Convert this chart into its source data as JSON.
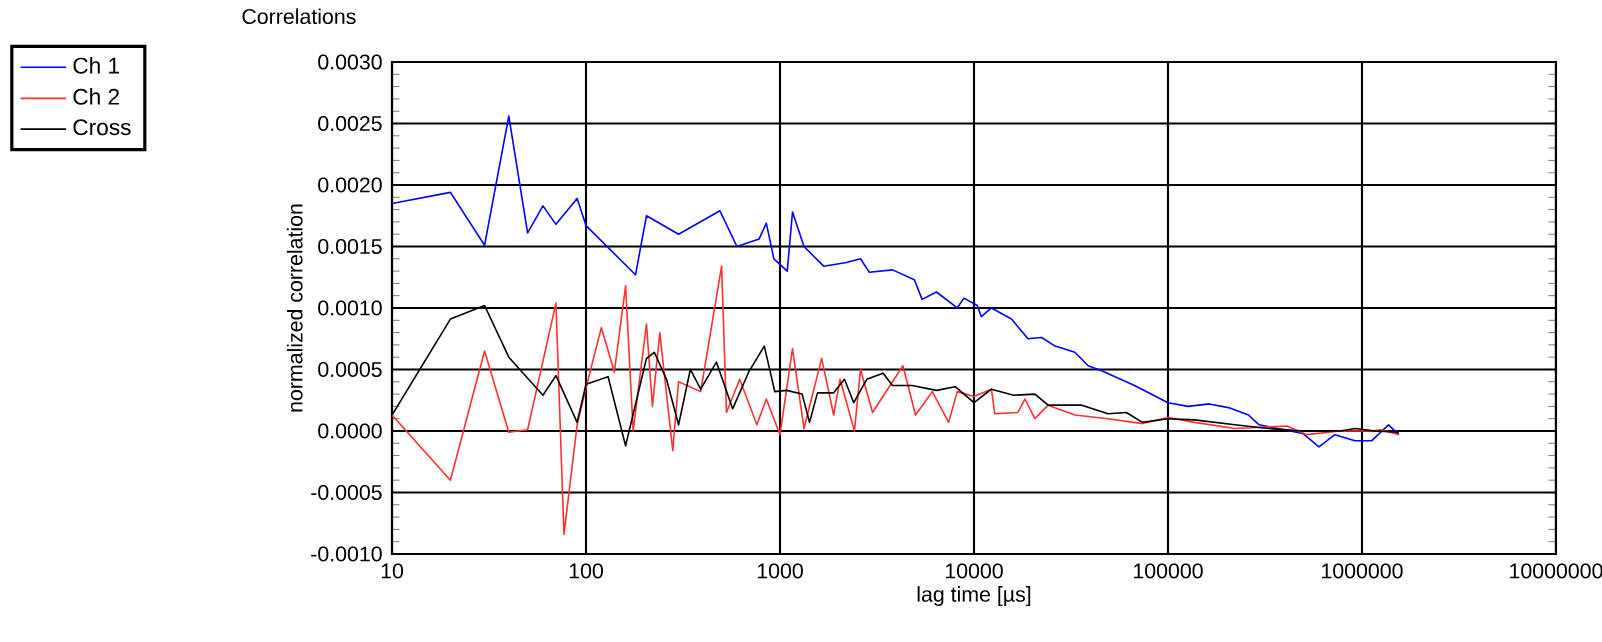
{
  "chart_data": {
    "type": "line",
    "title": "Correlations",
    "xlabel": "lag time [µs]",
    "ylabel": "normalized correlation",
    "log": "x",
    "grid": true,
    "legend": "top left",
    "marker": "none",
    "line_style": "solid",
    "xlim": [
      10,
      10000000
    ],
    "xticks": [
      10,
      100,
      1000,
      10000,
      100000,
      1000000,
      10000000
    ],
    "ylim": [
      -0.001,
      0.003
    ],
    "yticks": [
      {
        "value": -0.001,
        "label": "-0.0010"
      },
      {
        "value": -0.0005,
        "label": "-0.0005"
      },
      {
        "value": 0,
        "label": "0.0000"
      },
      {
        "value": 0.0005,
        "label": "0.0005"
      },
      {
        "value": 0.001,
        "label": "0.0010"
      },
      {
        "value": 0.0015,
        "label": "0.0015"
      },
      {
        "value": 0.002,
        "label": "0.0020"
      },
      {
        "value": 0.0025,
        "label": "0.0025"
      },
      {
        "value": 0.003,
        "label": "0.0030"
      }
    ],
    "series": [
      {
        "name": "Ch 1",
        "color": "#0000ff",
        "x": [
          10,
          20,
          30,
          40,
          50,
          60,
          70,
          90,
          100,
          180,
          205,
          300,
          490,
          600,
          780,
          850,
          930,
          1090,
          1160,
          1330,
          1680,
          2200,
          2600,
          2890,
          3800,
          4930,
          5400,
          6400,
          8200,
          8870,
          10400,
          10900,
          12300,
          15600,
          19000,
          22300,
          26200,
          33100,
          38800,
          45500,
          67300,
          100000,
          127000,
          163000,
          205000,
          260000,
          295000,
          495000,
          600000,
          725000,
          920000,
          1120000,
          1370000,
          1550000
        ],
        "values": [
          0.00185,
          0.00194,
          0.00151,
          0.00256,
          0.00161,
          0.00183,
          0.00168,
          0.00189,
          0.00167,
          0.00127,
          0.00175,
          0.0016,
          0.00179,
          0.0015,
          0.00156,
          0.00169,
          0.0014,
          0.0013,
          0.00178,
          0.0015,
          0.00134,
          0.00137,
          0.0014,
          0.00129,
          0.00131,
          0.00123,
          0.00107,
          0.00113,
          0.001,
          0.00108,
          0.00102,
          0.00093,
          0.001,
          0.00091,
          0.00075,
          0.00076,
          0.00069,
          0.00064,
          0.00053,
          0.00049,
          0.00037,
          0.00023,
          0.0002,
          0.00022,
          0.00019,
          0.00013,
          5e-05,
          -2e-05,
          -0.00013,
          -3e-05,
          -8e-05,
          -8e-05,
          5e-05,
          -3e-05
        ]
      },
      {
        "name": "Ch 2",
        "color": "#ff3030",
        "x": [
          10,
          20,
          30,
          40,
          50,
          70,
          77,
          90,
          100,
          120,
          140,
          160,
          175,
          205,
          220,
          240,
          280,
          300,
          390,
          500,
          530,
          620,
          760,
          850,
          1000,
          1160,
          1330,
          1640,
          1890,
          2040,
          2420,
          2600,
          3000,
          4300,
          5000,
          6100,
          7400,
          8200,
          10000,
          12300,
          12800,
          16800,
          18300,
          20600,
          24100,
          33100,
          49000,
          73800,
          100000,
          137000,
          221000,
          410000,
          520000,
          770000,
          1120000,
          1250000,
          1550000
        ],
        "values": [
          0.00013,
          -0.0004,
          0.00065,
          -1e-05,
          1e-05,
          0.00104,
          -0.00084,
          5e-05,
          0.00035,
          0.00084,
          0.00048,
          0.00118,
          0.0,
          0.00087,
          0.0002,
          0.0008,
          -0.00016,
          0.0004,
          0.00032,
          0.00134,
          0.00015,
          0.00042,
          5e-05,
          0.00026,
          -3e-05,
          0.00067,
          2e-05,
          0.00059,
          0.00013,
          0.00042,
          0.0,
          0.0005,
          0.00015,
          0.00053,
          0.00013,
          0.00032,
          7e-05,
          0.00032,
          0.00028,
          0.00034,
          0.00014,
          0.00015,
          0.00026,
          0.0001,
          0.00021,
          0.00013,
          0.0001,
          6e-05,
          0.00011,
          7e-05,
          2e-05,
          4e-05,
          -3e-05,
          0.0,
          0.0,
          1e-05,
          -3e-05
        ]
      },
      {
        "name": "Cross",
        "color": "#000000",
        "x": [
          10,
          20,
          30,
          40,
          60,
          70,
          90,
          100,
          130,
          160,
          205,
          225,
          260,
          300,
          345,
          390,
          470,
          570,
          690,
          830,
          940,
          1080,
          1300,
          1420,
          1560,
          1890,
          2150,
          2400,
          2800,
          3400,
          3800,
          4800,
          6400,
          8000,
          10000,
          12300,
          16000,
          20600,
          24100,
          36000,
          49000,
          61000,
          73800,
          100000,
          137000,
          221000,
          330000,
          495000,
          770000,
          920000,
          1170000,
          1550000
        ],
        "values": [
          0.00013,
          0.00091,
          0.00102,
          0.0006,
          0.00029,
          0.00045,
          7e-05,
          0.00038,
          0.00044,
          -0.00012,
          0.00059,
          0.00064,
          0.00042,
          5e-05,
          0.0005,
          0.00034,
          0.00056,
          0.00018,
          0.00048,
          0.00069,
          0.00032,
          0.00033,
          0.0003,
          7e-05,
          0.00031,
          0.00031,
          0.00042,
          0.00023,
          0.00042,
          0.00047,
          0.00037,
          0.00037,
          0.00033,
          0.00036,
          0.00023,
          0.00034,
          0.00029,
          0.0003,
          0.00021,
          0.00021,
          0.00014,
          0.00015,
          7e-05,
          0.0001,
          9e-05,
          5e-05,
          2e-05,
          0.0,
          0.0,
          2e-05,
          0.0,
          -1e-05
        ]
      }
    ]
  }
}
